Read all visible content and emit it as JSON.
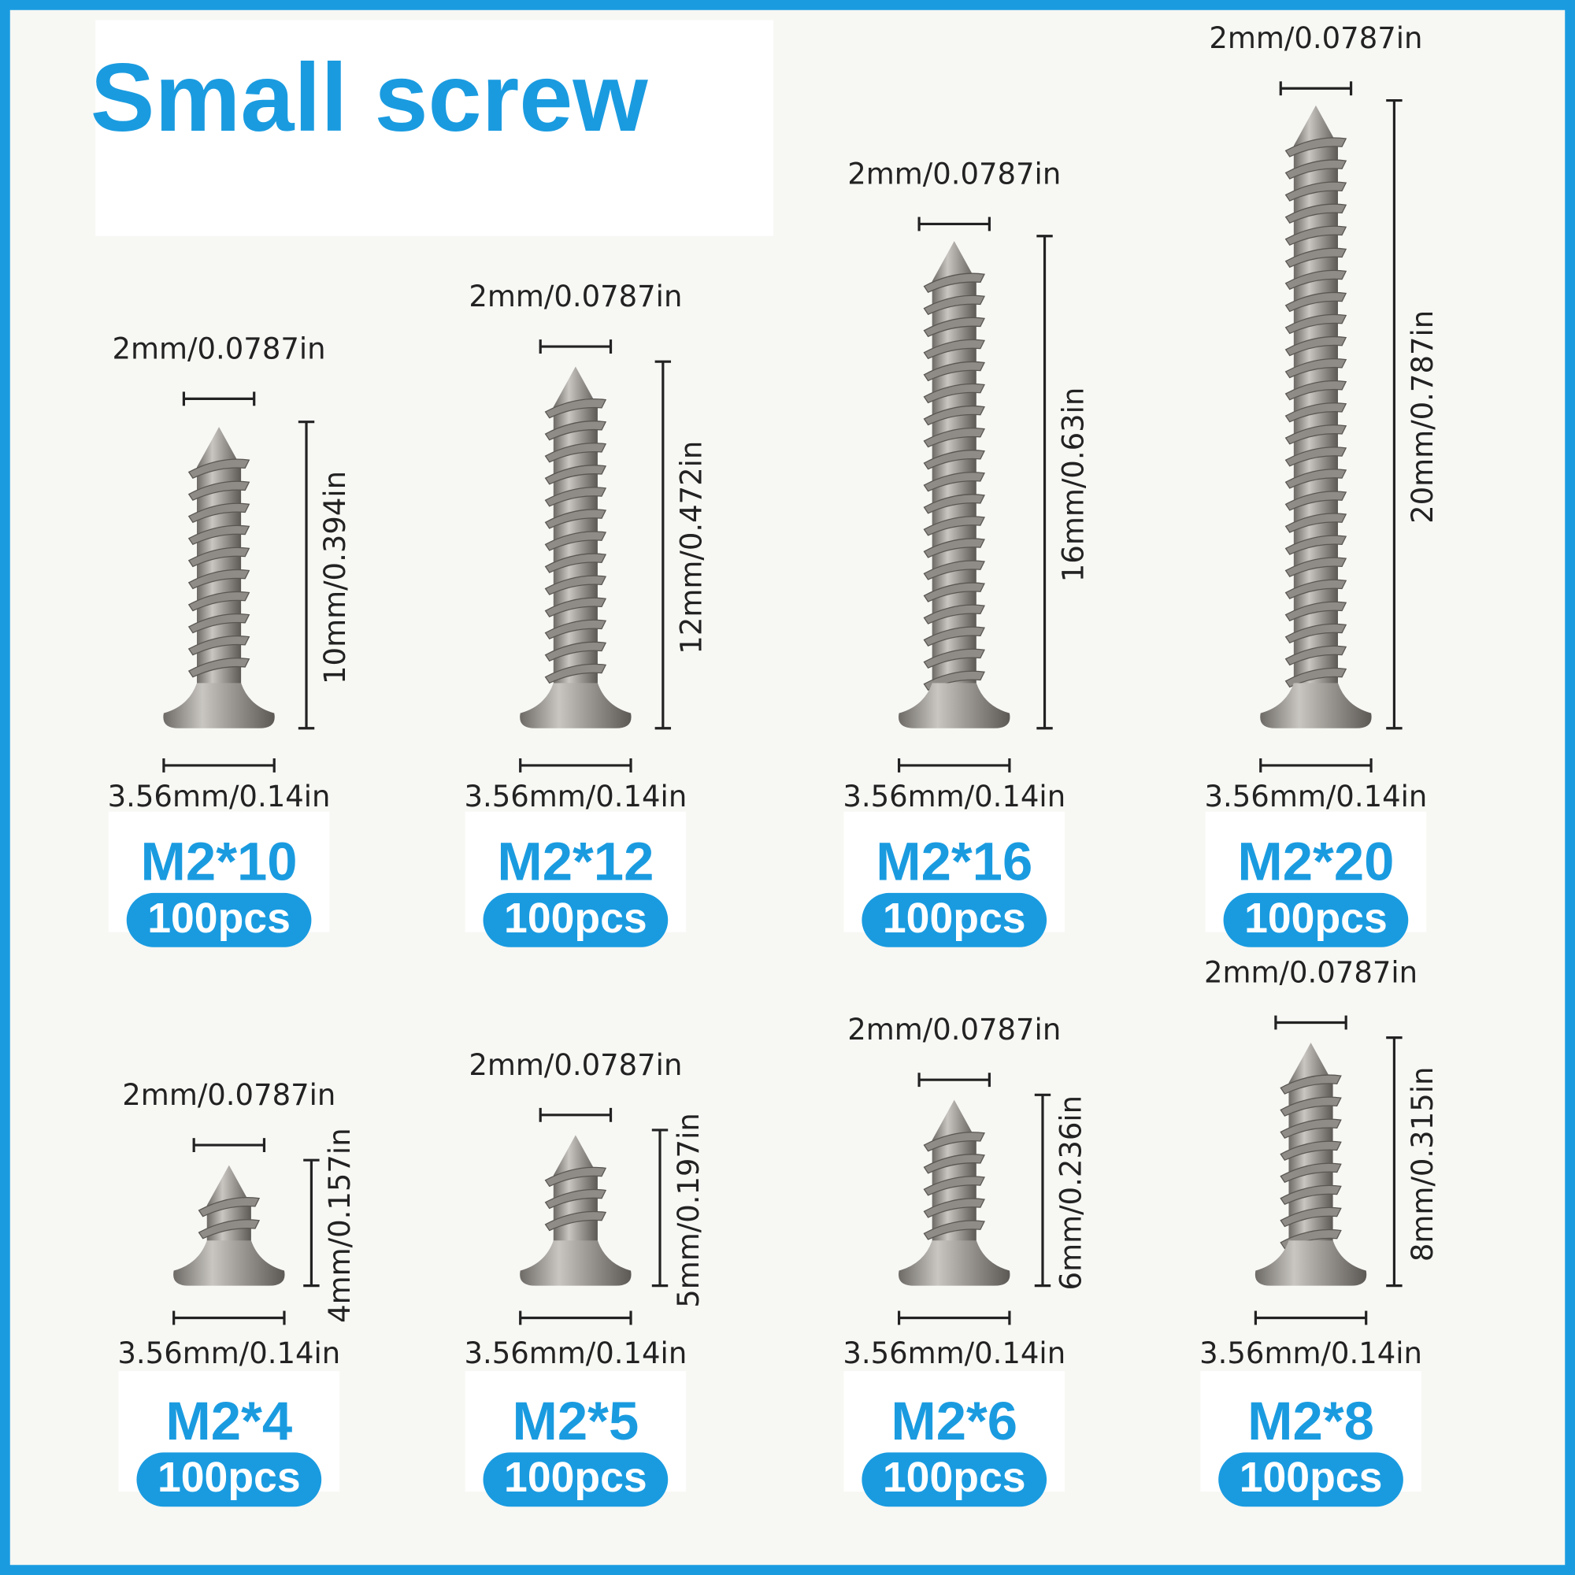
{
  "header": {
    "title": "Small screw"
  },
  "items": [
    {
      "top_dim": "2mm/0.0787in",
      "length": "10mm/0.394in",
      "bottom_dim": "3.56mm/0.14in",
      "model": "M2*10",
      "qty": "100pcs"
    },
    {
      "top_dim": "2mm/0.0787in",
      "length": "12mm/0.472in",
      "bottom_dim": "3.56mm/0.14in",
      "model": "M2*12",
      "qty": "100pcs"
    },
    {
      "top_dim": "2mm/0.0787in",
      "length": "16mm/0.63in",
      "bottom_dim": "3.56mm/0.14in",
      "model": "M2*16",
      "qty": "100pcs"
    },
    {
      "top_dim": "2mm/0.0787in",
      "length": "20mm/0.787in",
      "bottom_dim": "3.56mm/0.14in",
      "model": "M2*20",
      "qty": "100pcs"
    },
    {
      "top_dim": "2mm/0.0787in",
      "length": "4mm/0.157in",
      "bottom_dim": "3.56mm/0.14in",
      "model": "M2*4",
      "qty": "100pcs"
    },
    {
      "top_dim": "2mm/0.0787in",
      "length": "5mm/0.197in",
      "bottom_dim": "3.56mm/0.14in",
      "model": "M2*5",
      "qty": "100pcs"
    },
    {
      "top_dim": "2mm/0.0787in",
      "length": "6mm/0.236in",
      "bottom_dim": "3.56mm/0.14in",
      "model": "M2*6",
      "qty": "100pcs"
    },
    {
      "top_dim": "2mm/0.0787in",
      "length": "8mm/0.315in",
      "bottom_dim": "3.56mm/0.14in",
      "model": "M2*8",
      "qty": "100pcs"
    }
  ]
}
